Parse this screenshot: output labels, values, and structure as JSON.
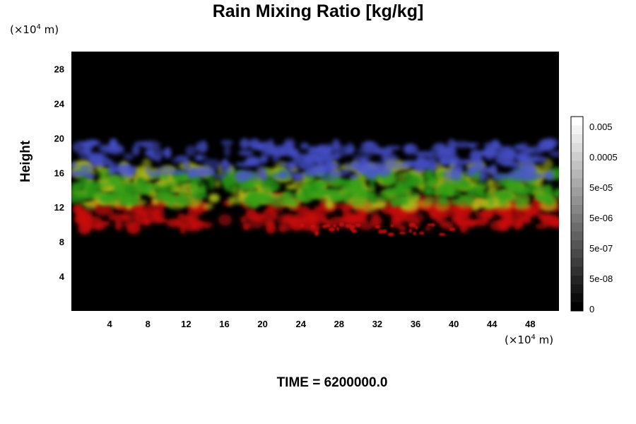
{
  "chart_data": {
    "type": "heatmap",
    "title": "Rain Mixing Ratio [kg/kg]",
    "ylabel": "Height",
    "xlabel": "",
    "y_unit": {
      "prefix": "(×10",
      "exp": "4",
      "suffix": " m)"
    },
    "x_unit": {
      "prefix": "(×10",
      "exp": "4",
      "suffix": " m)"
    },
    "xlim": [
      0,
      51
    ],
    "ylim": [
      0,
      30
    ],
    "x_ticks": [
      "4",
      "8",
      "12",
      "16",
      "20",
      "24",
      "28",
      "32",
      "36",
      "40",
      "44",
      "48"
    ],
    "y_ticks": [
      "4",
      "8",
      "12",
      "16",
      "20",
      "24",
      "28"
    ],
    "colorbar": {
      "labels": [
        "0.005",
        "0.0005",
        "5e-05",
        "5e-06",
        "5e-07",
        "5e-08",
        "0"
      ],
      "levels": 22
    },
    "background_color": "#000000",
    "layers": [
      {
        "color": "#dd1111",
        "band": [
          9.5,
          13.0
        ]
      },
      {
        "color": "#b8c81c",
        "band": [
          12.0,
          17.0
        ]
      },
      {
        "color": "#2ba016",
        "band": [
          12.5,
          16.0
        ]
      },
      {
        "color": "#4b55d8",
        "band": [
          15.5,
          19.5
        ]
      }
    ]
  },
  "footer": {
    "time_label": "TIME = 6200000.0"
  }
}
